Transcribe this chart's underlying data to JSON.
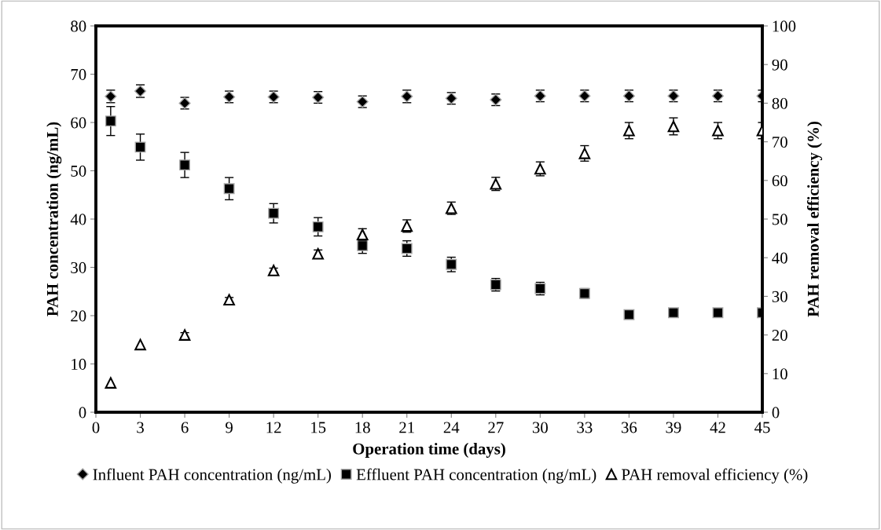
{
  "chart_data": {
    "type": "scatter",
    "xlabel": "Operation time (days)",
    "ylabel": "PAH concentration (ng/mL)",
    "y2label": "PAH removal efficiency (%)",
    "x": [
      1,
      3,
      6,
      9,
      12,
      15,
      18,
      21,
      24,
      27,
      30,
      33,
      36,
      39,
      42,
      45
    ],
    "xlim": [
      0,
      45
    ],
    "xticks": [
      0,
      3,
      6,
      9,
      12,
      15,
      18,
      21,
      24,
      27,
      30,
      33,
      36,
      39,
      42,
      45
    ],
    "ylim": [
      0,
      80
    ],
    "yticks": [
      0,
      10,
      20,
      30,
      40,
      50,
      60,
      70,
      80
    ],
    "y2lim": [
      0,
      100
    ],
    "y2ticks": [
      0,
      10,
      20,
      30,
      40,
      50,
      60,
      70,
      80,
      90,
      100
    ],
    "grid": false,
    "legend": "bottom",
    "series": [
      {
        "name": "Influent PAH concentration (ng/mL)",
        "color": "#000000",
        "marker": "diamond",
        "values": [
          65.4,
          66.5,
          64.0,
          65.3,
          65.3,
          65.2,
          64.3,
          65.4,
          65.0,
          64.7,
          65.5,
          65.5,
          65.5,
          65.5,
          65.5,
          65.5
        ],
        "errors": [
          1.3,
          1.3,
          1.2,
          1.2,
          1.2,
          1.2,
          1.2,
          1.3,
          1.2,
          1.2,
          1.2,
          1.2,
          1.2,
          1.2,
          1.2,
          1.2
        ]
      },
      {
        "name": "Effluent PAH concentration (ng/mL)",
        "color": "#000000",
        "marker": "square",
        "values": [
          60.3,
          54.9,
          51.2,
          46.3,
          41.2,
          38.4,
          34.5,
          33.9,
          30.6,
          26.4,
          25.6,
          24.6,
          20.2,
          20.6,
          20.6,
          20.6
        ],
        "errors": [
          3.0,
          2.7,
          2.6,
          2.3,
          2.0,
          1.9,
          1.6,
          1.6,
          1.5,
          1.3,
          1.3,
          1.0,
          null,
          null,
          null,
          null
        ]
      },
      {
        "name": "PAH removal efficiency (%)",
        "color": "#ffffff",
        "marker": "triangle",
        "axis": "y2",
        "values": [
          7.6,
          17.5,
          20.0,
          29.1,
          36.7,
          41.0,
          46.0,
          48.2,
          52.8,
          59.1,
          63.0,
          67.0,
          72.9,
          74.0,
          72.9,
          72.9
        ],
        "errors": [
          null,
          null,
          0.6,
          0.6,
          0.6,
          1.0,
          1.5,
          1.6,
          1.6,
          1.7,
          1.8,
          2.0,
          2.1,
          2.2,
          2.1,
          2.1
        ]
      }
    ]
  }
}
